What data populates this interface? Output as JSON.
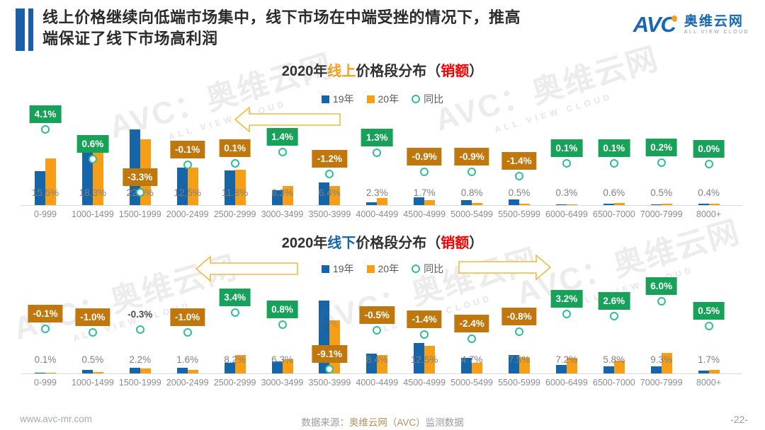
{
  "header": {
    "title_line1": "线上价格继续向低端市场集中，线下市场在中端受挫的情况下，推高",
    "title_line2": "端保证了线下市场高利润"
  },
  "logo": {
    "mark": "AVC",
    "name_cn": "奥维云网",
    "name_en": "ALL VIEW CLOUD"
  },
  "legend": {
    "items": [
      {
        "label": "19年",
        "marker": "square",
        "color": "#1765a9"
      },
      {
        "label": "20年",
        "marker": "square",
        "color": "#f59e18"
      },
      {
        "label": "同比",
        "marker": "circle",
        "color": "#2fbd9a"
      }
    ]
  },
  "watermark": {
    "text": "AVC：奥维云网",
    "subtext": "ALL VIEW CLOUD"
  },
  "footer": {
    "website": "www.avc-mr.com",
    "source_prefix": "数据来源：",
    "source_name": "奥维云网（AVC）",
    "source_suffix": "监测数据",
    "page_number": "-22-"
  },
  "colors": {
    "bar_2019": "#1765a9",
    "bar_2020": "#f59e18",
    "yoy_positive_box": "#18a159",
    "yoy_negative_box": "#c0770e",
    "yoy_marker": "#2fbd9a",
    "accent_red": "#fe0000",
    "header_blue": "#1a5fa8",
    "arrow_yellow": "#f0ba3f"
  },
  "chart_data": [
    {
      "type": "bar",
      "title_segments": [
        {
          "text": "2020年",
          "color": "#303030"
        },
        {
          "text": "线上",
          "color": "#f59e18"
        },
        {
          "text": "价格段分布（",
          "color": "#303030"
        },
        {
          "text": "销额",
          "color": "#fe0000"
        },
        {
          "text": "）",
          "color": "#303030"
        }
      ],
      "categories": [
        "0-999",
        "1000-1499",
        "1500-1999",
        "2000-2499",
        "2500-2999",
        "3000-3499",
        "3500-3999",
        "4000-4499",
        "4500-4999",
        "5000-5499",
        "5500-5999",
        "6000-6499",
        "6500-7000",
        "7000-7999",
        "8000+"
      ],
      "series": [
        {
          "name": "19年",
          "values": [
            11.4,
            17.7,
            25.3,
            12.6,
            11.7,
            4.9,
            7.6,
            1.0,
            2.6,
            1.7,
            1.9,
            0.2,
            0.5,
            0.3,
            0.4
          ],
          "note": "estimated from bar heights (2020 value minus YoY)"
        },
        {
          "name": "20年",
          "values": [
            15.5,
            18.3,
            22.0,
            12.5,
            11.8,
            6.3,
            6.4,
            2.3,
            1.7,
            0.8,
            0.5,
            0.3,
            0.6,
            0.5,
            0.4
          ]
        }
      ],
      "value_labels_2020": [
        "15.5%",
        "18.3%",
        "22.0%",
        "12.5%",
        "11.8%",
        "6.3%",
        "6.4%",
        "2.3%",
        "1.7%",
        "0.8%",
        "0.5%",
        "0.3%",
        "0.6%",
        "0.5%",
        "0.4%"
      ],
      "yoy_values": [
        4.1,
        0.6,
        -3.3,
        -0.1,
        0.1,
        1.4,
        -1.2,
        1.3,
        -0.9,
        -0.9,
        -1.4,
        0.1,
        0.1,
        0.2,
        0.0
      ],
      "yoy_labels": [
        "4.1%",
        "0.6%",
        "-3.3%",
        "-0.1%",
        "0.1%",
        "1.4%",
        "-1.2%",
        "1.3%",
        "-0.9%",
        "-0.9%",
        "-1.4%",
        "0.1%",
        "0.1%",
        "0.2%",
        "0.0%"
      ],
      "yoy_badge_style": [
        "green",
        "green",
        "orange",
        "orange",
        "orange",
        "green",
        "orange",
        "green",
        "orange",
        "orange",
        "orange",
        "green",
        "green",
        "green",
        "green"
      ],
      "annotations": {
        "arrows": [
          "left"
        ]
      },
      "xlabel": "",
      "ylabel": "",
      "ylim": [
        0,
        27
      ],
      "grid": false,
      "legend_position": "top-center"
    },
    {
      "type": "bar",
      "title_segments": [
        {
          "text": "2020年",
          "color": "#303030"
        },
        {
          "text": "线下",
          "color": "#1765a9"
        },
        {
          "text": "价格段分布（",
          "color": "#303030"
        },
        {
          "text": "销额",
          "color": "#fe0000"
        },
        {
          "text": "）",
          "color": "#303030"
        }
      ],
      "categories": [
        "0-999",
        "1000-1499",
        "1500-1999",
        "2000-2499",
        "2500-2999",
        "3000-3499",
        "3500-3999",
        "4000-4499",
        "4500-4999",
        "5000-5499",
        "5500-5999",
        "6000-6499",
        "6500-7000",
        "7000-7999",
        "8000+"
      ],
      "series": [
        {
          "name": "19年",
          "values": [
            0.2,
            1.5,
            2.5,
            2.6,
            4.8,
            5.5,
            33.1,
            8.9,
            13.9,
            7.1,
            8.3,
            4.0,
            3.2,
            3.3,
            1.2
          ],
          "note": "estimated from bar heights (2020 value minus YoY)"
        },
        {
          "name": "20年",
          "values": [
            0.1,
            0.5,
            2.2,
            1.6,
            8.2,
            6.3,
            24.0,
            8.4,
            12.5,
            4.7,
            7.5,
            7.2,
            5.8,
            9.3,
            1.7
          ]
        }
      ],
      "value_labels_2020": [
        "0.1%",
        "0.5%",
        "2.2%",
        "1.6%",
        "8.2%",
        "6.3%",
        "24.0%",
        "8.4%",
        "12.5%",
        "4.7%",
        "7.5%",
        "7.2%",
        "5.8%",
        "9.3%",
        "1.7%"
      ],
      "yoy_values": [
        -0.1,
        -1.0,
        -0.3,
        -1.0,
        3.4,
        0.8,
        -9.1,
        -0.5,
        -1.4,
        -2.4,
        -0.8,
        3.2,
        2.6,
        6.0,
        0.5
      ],
      "yoy_labels": [
        "-0.1%",
        "-1.0%",
        "-0.3%",
        "-1.0%",
        "3.4%",
        "0.8%",
        "-9.1%",
        "-0.5%",
        "-1.4%",
        "-2.4%",
        "-0.8%",
        "3.2%",
        "2.6%",
        "6.0%",
        "0.5%"
      ],
      "yoy_badge_style": [
        "orange",
        "orange",
        "none",
        "orange",
        "green",
        "green",
        "orange",
        "orange",
        "orange",
        "orange",
        "orange",
        "green",
        "green",
        "green",
        "green"
      ],
      "annotations": {
        "arrows": [
          "left",
          "right"
        ]
      },
      "xlabel": "",
      "ylabel": "",
      "ylim": [
        0,
        35
      ],
      "grid": false,
      "legend_position": "top-center"
    }
  ]
}
